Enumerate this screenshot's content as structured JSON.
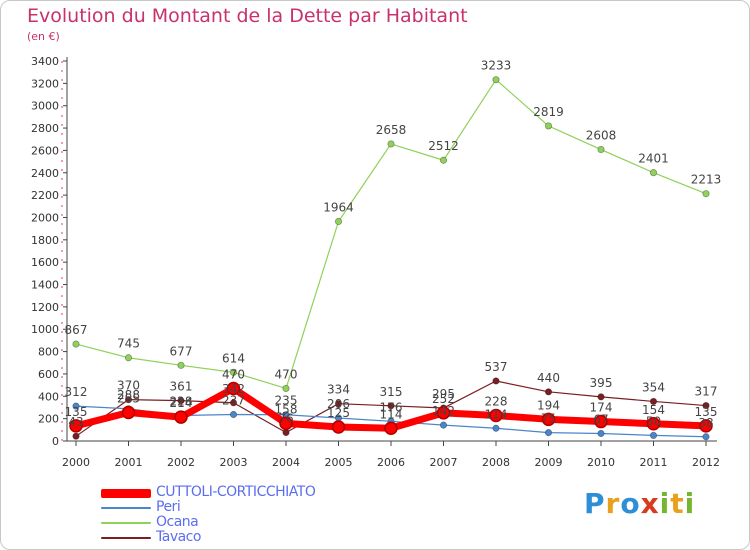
{
  "header": {
    "title": "Evolution du Montant de la Dette par Habitant",
    "subtitle": "(en €)"
  },
  "logo": {
    "text": "Proxiti"
  },
  "chart_data": {
    "type": "line",
    "title": "Evolution du Montant de la Dette par Habitant",
    "subtitle": "(en €)",
    "xlabel": "",
    "ylabel": "",
    "x": [
      "2000",
      "2001",
      "2002",
      "2003",
      "2004",
      "2005",
      "2006",
      "2007",
      "2008",
      "2009",
      "2010",
      "2011",
      "2012"
    ],
    "ylim": [
      0,
      3400
    ],
    "yticks": [
      0,
      200,
      400,
      600,
      800,
      1000,
      1200,
      1400,
      1600,
      1800,
      2000,
      2200,
      2400,
      2600,
      2800,
      3000,
      3200,
      3400
    ],
    "grid": false,
    "legend": "bottom-left",
    "series": [
      {
        "name": "CUTTOLI-CORTICCHIATO",
        "color": "#ff0000",
        "values": [
          135,
          255,
          214,
          470,
          158,
          125,
          114,
          252,
          228,
          194,
          174,
          154,
          135
        ],
        "labels": [
          "135",
          "255",
          "214",
          "470",
          "158",
          "125",
          "114",
          "252",
          "228",
          "194",
          "174",
          "154",
          "135"
        ]
      },
      {
        "name": "Peri",
        "color": "#4a86c8",
        "values": [
          312,
          288,
          228,
          237,
          235,
          206,
          176,
          142,
          114,
          75,
          67,
          50,
          38
        ],
        "labels": [
          "312",
          "288",
          "228",
          "237",
          "235",
          "206",
          "176",
          "142",
          "114",
          "75",
          "67",
          "50",
          "38"
        ]
      },
      {
        "name": "Ocana",
        "color": "#8fd15a",
        "values": [
          867,
          745,
          677,
          614,
          470,
          1964,
          2658,
          2512,
          3233,
          2819,
          2608,
          2401,
          2213
        ],
        "labels": [
          "867",
          "745",
          "677",
          "614",
          "470",
          "1964",
          "2658",
          "2512",
          "3233",
          "2819",
          "2608",
          "2401",
          "2213"
        ]
      },
      {
        "name": "Tavaco",
        "color": "#7b1e22",
        "values": [
          43,
          370,
          361,
          342,
          76,
          334,
          315,
          295,
          537,
          440,
          395,
          354,
          317
        ],
        "labels": [
          "43",
          "370",
          "361",
          "342",
          "76",
          "334",
          "315",
          "295",
          "537",
          "440",
          "395",
          "354",
          "317"
        ]
      }
    ]
  }
}
